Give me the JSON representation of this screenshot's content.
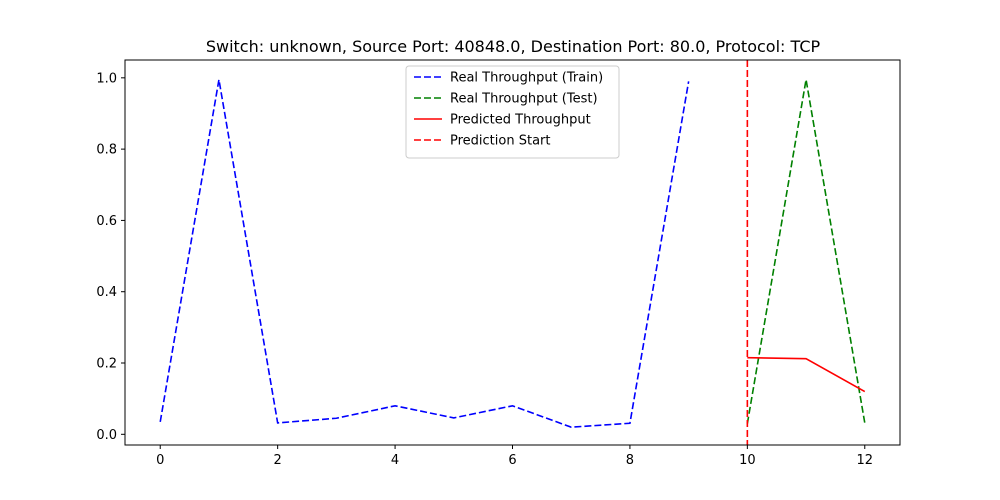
{
  "chart_data": {
    "type": "line",
    "title": "Switch: unknown, Source Port: 40848.0, Destination Port: 80.0, Protocol: TCP",
    "xlabel": "",
    "ylabel": "",
    "xlim": [
      -0.6,
      12.6
    ],
    "ylim": [
      -0.03,
      1.05
    ],
    "xticks": [
      0,
      2,
      4,
      6,
      8,
      10,
      12
    ],
    "yticks": [
      0.0,
      0.2,
      0.4,
      0.6,
      0.8,
      1.0
    ],
    "xtick_labels": [
      "0",
      "2",
      "4",
      "6",
      "8",
      "10",
      "12"
    ],
    "ytick_labels": [
      "0.0",
      "0.2",
      "0.4",
      "0.6",
      "0.8",
      "1.0"
    ],
    "grid": false,
    "legend_position": "top-center",
    "series": [
      {
        "name": "Real Throughput (Train)",
        "color": "#0000ff",
        "style": "dashed",
        "x": [
          0,
          1,
          2,
          3,
          4,
          5,
          6,
          7,
          8,
          9
        ],
        "y": [
          0.035,
          0.995,
          0.032,
          0.045,
          0.08,
          0.046,
          0.08,
          0.02,
          0.031,
          0.99
        ]
      },
      {
        "name": "Real Throughput (Test)",
        "color": "#008000",
        "style": "dashed",
        "x": [
          10,
          11,
          12
        ],
        "y": [
          0.03,
          0.995,
          0.032
        ]
      },
      {
        "name": "Predicted Throughput",
        "color": "#ff0000",
        "style": "solid",
        "x": [
          10,
          11,
          12
        ],
        "y": [
          0.215,
          0.212,
          0.12
        ]
      }
    ],
    "vlines": [
      {
        "name": "Prediction Start",
        "color": "#ff0000",
        "style": "dashed",
        "x": 10
      }
    ]
  }
}
